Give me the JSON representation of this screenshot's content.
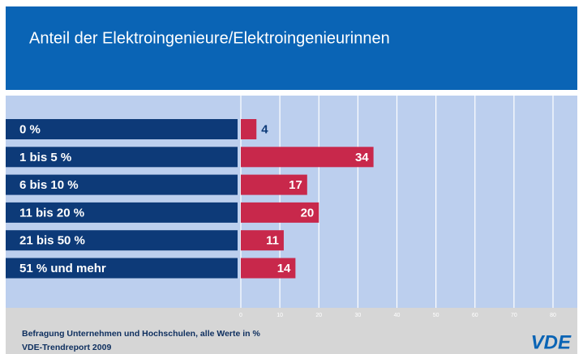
{
  "chart_data": {
    "type": "bar",
    "orientation": "horizontal",
    "title": "Anteil der Elektroingenieure/Elektroingenieurinnen",
    "categories": [
      "0 %",
      "1 bis 5 %",
      "6 bis 10 %",
      "11 bis 20 %",
      "21 bis 50 %",
      "51 % und mehr"
    ],
    "values": [
      4,
      34,
      17,
      20,
      11,
      14
    ],
    "color": "#c8284b",
    "category_color": "#0d3a78",
    "xlim": [
      0,
      80
    ],
    "xticks": [
      0,
      10,
      20,
      30,
      40,
      50,
      60,
      70,
      80
    ],
    "grid": true,
    "footnote": [
      "Befragung Unternehmen und Hochschulen, alle Werte in %",
      "VDE-Trendreport 2009"
    ],
    "logo": "VDE"
  }
}
